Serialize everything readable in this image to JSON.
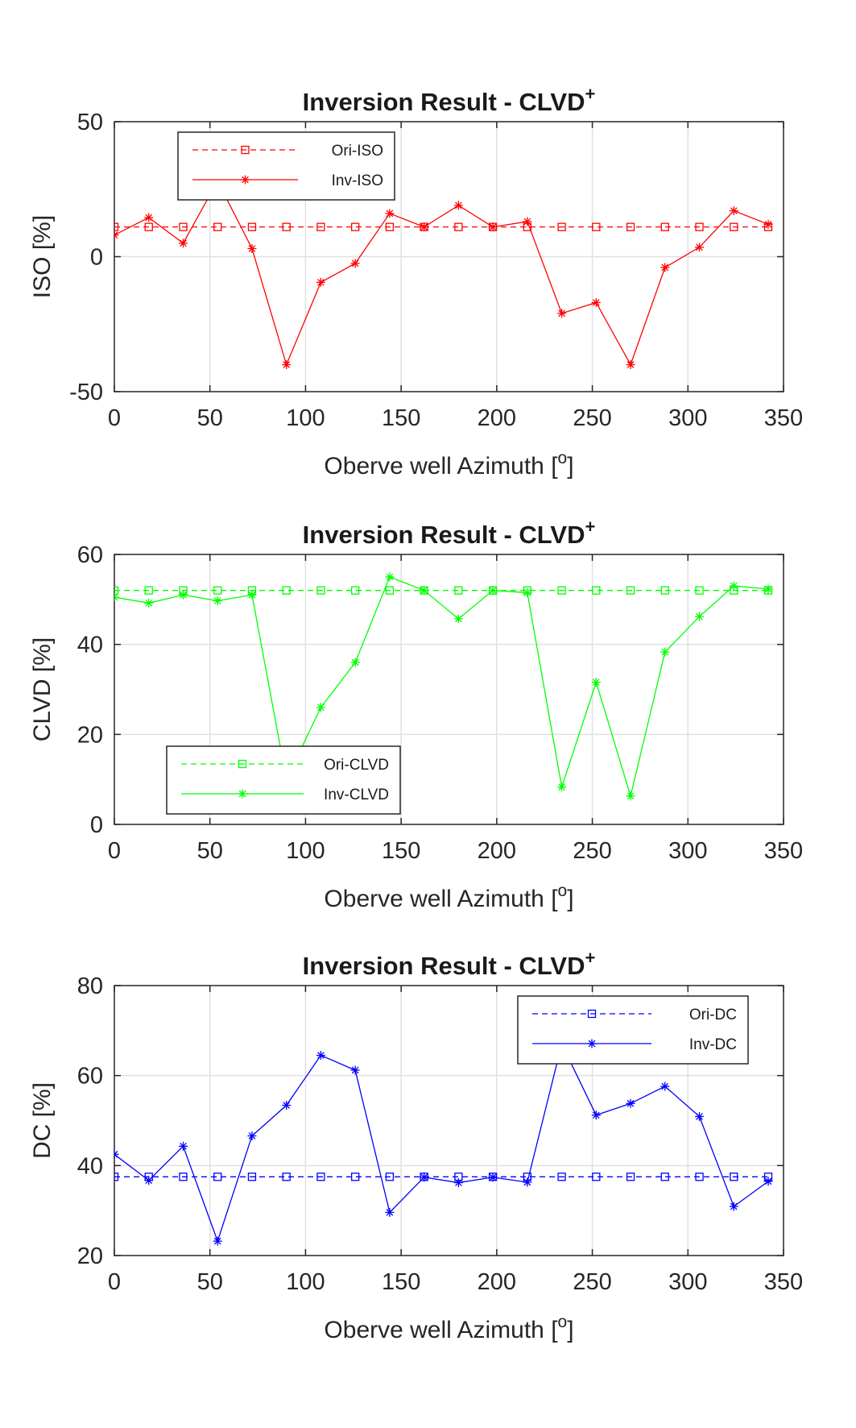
{
  "chart_data": [
    {
      "type": "line",
      "title": "Inversion Result - CLVD",
      "title_superscript": "+",
      "xlabel": "Oberve well Azimuth [",
      "xlabel_superscript": "o",
      "xlabel_suffix": "]",
      "ylabel": "ISO [%]",
      "xlim": [
        0,
        350
      ],
      "ylim": [
        -50,
        50
      ],
      "xticks": [
        0,
        50,
        100,
        150,
        200,
        250,
        300,
        350
      ],
      "yticks": [
        -50,
        0,
        50
      ],
      "grid": true,
      "legend_position": "top-left",
      "color": "#ff0000",
      "x": [
        0,
        18,
        36,
        54,
        72,
        90,
        108,
        126,
        144,
        162,
        180,
        198,
        216,
        234,
        252,
        270,
        288,
        306,
        324,
        342
      ],
      "series": [
        {
          "name": "Ori-ISO",
          "style": "dashed",
          "marker": "square",
          "values": [
            11,
            11,
            11,
            11,
            11,
            11,
            11,
            11,
            11,
            11,
            11,
            11,
            11,
            11,
            11,
            11,
            11,
            11,
            11,
            11
          ]
        },
        {
          "name": "Inv-ISO",
          "style": "solid",
          "marker": "asterisk",
          "values": [
            8,
            14.5,
            5,
            28,
            3,
            -40,
            -9.5,
            -2.5,
            16,
            11,
            19,
            11,
            13,
            -21,
            -17,
            -40,
            -4,
            3.5,
            17,
            12
          ]
        }
      ]
    },
    {
      "type": "line",
      "title": "Inversion Result - CLVD",
      "title_superscript": "+",
      "xlabel": "Oberve well Azimuth [",
      "xlabel_superscript": "o",
      "xlabel_suffix": "]",
      "ylabel": "CLVD [%]",
      "xlim": [
        0,
        350
      ],
      "ylim": [
        0,
        60
      ],
      "xticks": [
        0,
        50,
        100,
        150,
        200,
        250,
        300,
        350
      ],
      "yticks": [
        0,
        20,
        40,
        60
      ],
      "grid": true,
      "legend_position": "bottom-left",
      "color": "#00ff00",
      "x": [
        0,
        18,
        36,
        54,
        72,
        90,
        108,
        126,
        144,
        162,
        180,
        198,
        216,
        234,
        252,
        270,
        288,
        306,
        324,
        342
      ],
      "series": [
        {
          "name": "Ori-CLVD",
          "style": "dashed",
          "marker": "square",
          "values": [
            52,
            52,
            52,
            52,
            52,
            52,
            52,
            52,
            52,
            52,
            52,
            52,
            52,
            52,
            52,
            52,
            52,
            52,
            52,
            52
          ]
        },
        {
          "name": "Inv-CLVD",
          "style": "solid",
          "marker": "asterisk",
          "values": [
            50.5,
            49.2,
            51,
            49.7,
            51,
            10,
            26,
            36,
            55,
            52,
            45.7,
            52,
            51.5,
            8.3,
            31.6,
            6.3,
            38.3,
            46.2,
            53,
            52.3
          ]
        }
      ]
    },
    {
      "type": "line",
      "title": "Inversion Result - CLVD",
      "title_superscript": "+",
      "xlabel": "Oberve well Azimuth [",
      "xlabel_superscript": "o",
      "xlabel_suffix": "]",
      "ylabel": "DC [%]",
      "xlim": [
        0,
        350
      ],
      "ylim": [
        20,
        80
      ],
      "xticks": [
        0,
        50,
        100,
        150,
        200,
        250,
        300,
        350
      ],
      "yticks": [
        20,
        40,
        60,
        80
      ],
      "grid": true,
      "legend_position": "top-right",
      "color": "#0000ff",
      "x": [
        0,
        18,
        36,
        54,
        72,
        90,
        108,
        126,
        144,
        162,
        180,
        198,
        216,
        234,
        252,
        270,
        288,
        306,
        324,
        342
      ],
      "series": [
        {
          "name": "Ori-DC",
          "style": "dashed",
          "marker": "square",
          "values": [
            37.5,
            37.5,
            37.5,
            37.5,
            37.5,
            37.5,
            37.5,
            37.5,
            37.5,
            37.5,
            37.5,
            37.5,
            37.5,
            37.5,
            37.5,
            37.5,
            37.5,
            37.5,
            37.5,
            37.5
          ]
        },
        {
          "name": "Inv-DC",
          "style": "solid",
          "marker": "asterisk",
          "values": [
            42.5,
            36.7,
            44.3,
            23.2,
            46.6,
            53.4,
            64.5,
            61.2,
            29.6,
            37.4,
            36.2,
            37.4,
            36.3,
            67,
            51.2,
            53.8,
            57.6,
            50.9,
            30.9,
            36.5
          ]
        }
      ]
    }
  ]
}
